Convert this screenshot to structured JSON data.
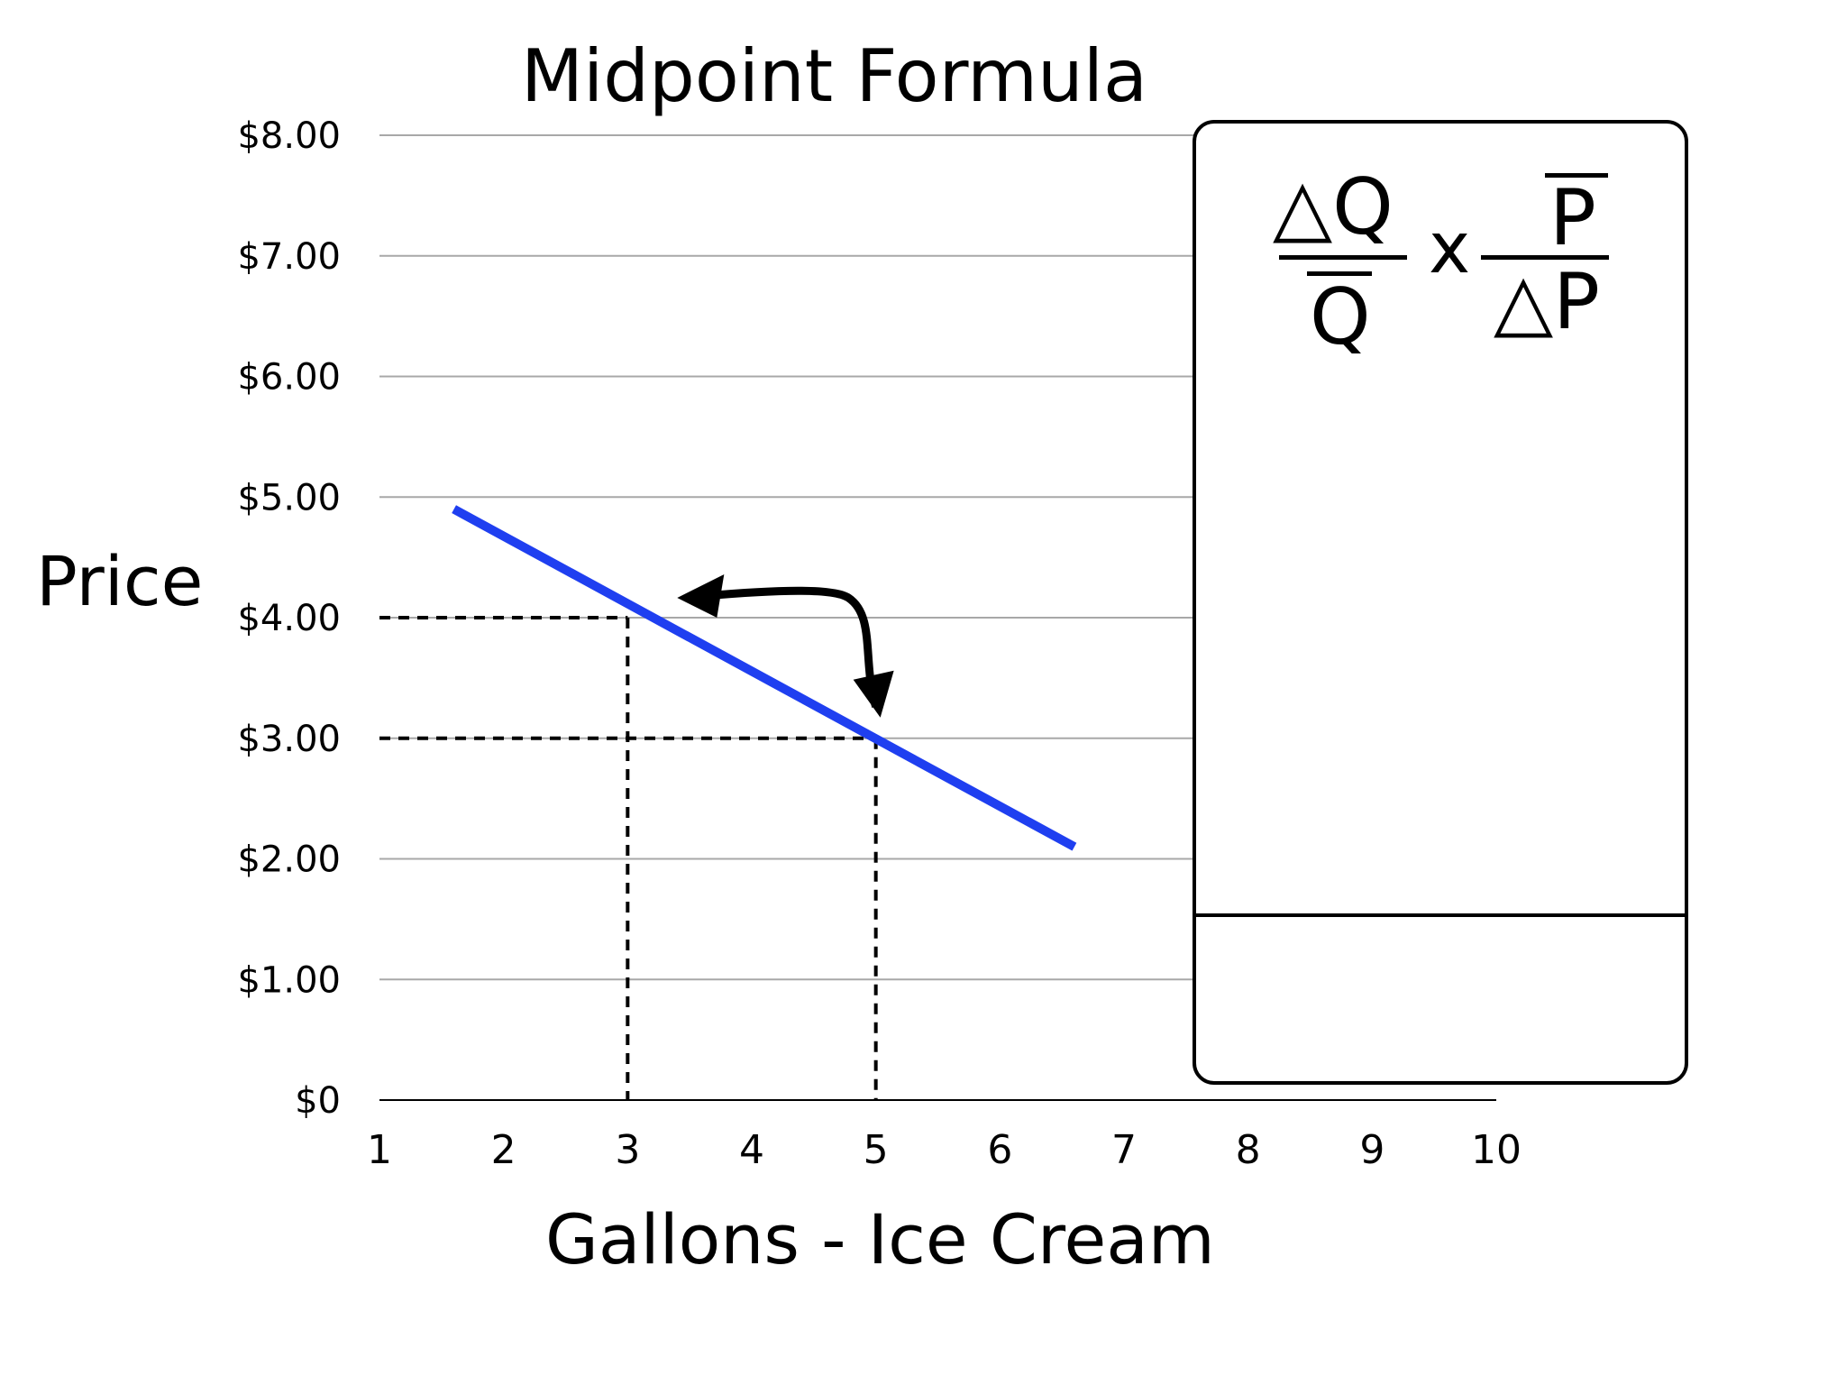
{
  "chart_data": {
    "type": "line",
    "title": "Midpoint Formula",
    "xlabel": "Gallons - Ice Cream",
    "ylabel": "Price",
    "xlim": [
      1,
      10
    ],
    "ylim": [
      0,
      8
    ],
    "x_ticks": [
      "1",
      "2",
      "3",
      "4",
      "5",
      "6",
      "7",
      "8",
      "9",
      "10"
    ],
    "y_ticks": [
      "$0",
      "$1.00",
      "$2.00",
      "$3.00",
      "$4.00",
      "$5.00",
      "$6.00",
      "$7.00",
      "$8.00"
    ],
    "grid": true,
    "series": [
      {
        "color": "#1f3ff0",
        "x": [
          1.6,
          6.6
        ],
        "y": [
          4.9,
          2.1
        ]
      }
    ],
    "highlighted_points": [
      {
        "x": 3,
        "y": 4.0
      },
      {
        "x": 5,
        "y": 3.0
      }
    ],
    "formula_box": {
      "numerator_left": "△Q",
      "denominator_left": "Q",
      "operator": "x",
      "numerator_right": "P",
      "denominator_right": "△P"
    }
  }
}
